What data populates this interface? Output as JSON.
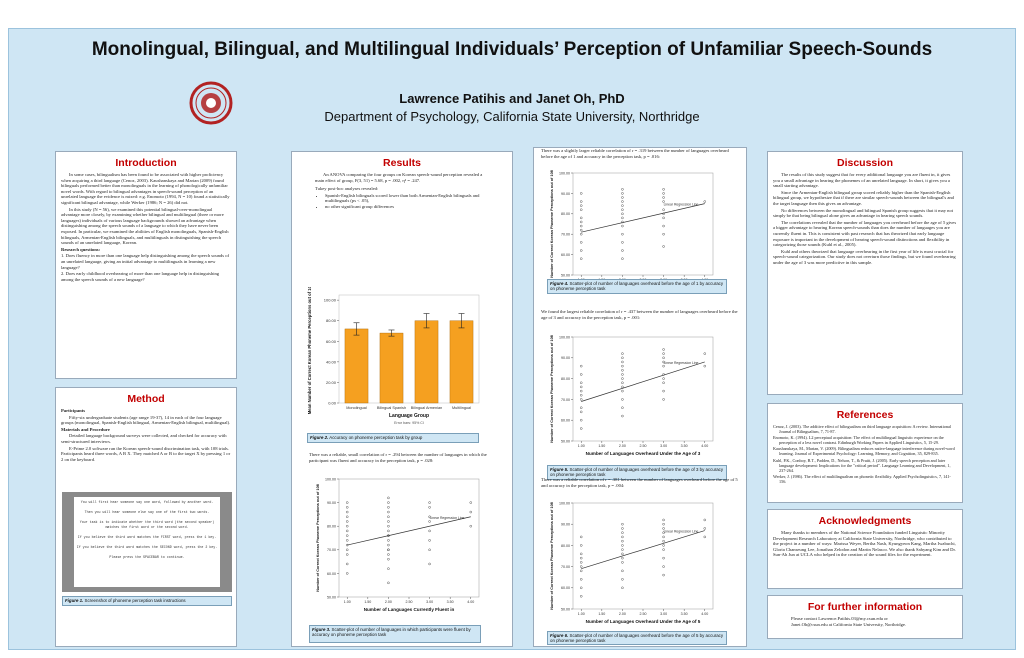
{
  "header": {
    "title": "Monolingual, Bilingual, and Multilingual Individuals’ Perception of Unfamiliar Speech-Sounds",
    "authors": "Lawrence Patihis and Janet Oh, PhD",
    "affiliation": "Department of Psychology, California State University, Northridge",
    "seal_color": "#b22222"
  },
  "intro": {
    "heading": "Introduction",
    "p1": "In some cases, bilingualism has been found to be associated with higher proficiency when acquiring a third language (Cenoz, 2003). Kaushanskaya and Marian (2009) found bilinguals performed better than monolinguals in the learning of phonologically unfamiliar novel words. With regard to bilingual advantages in speech-sound perception of an unrelated language the evidence is mixed: e.g. Enomoto (1994, N = 10) found a statistically significant bilingual advantage, while Werker (1986; N = 26) did not.",
    "p2": "In this study (N = 56), we examined this potential bilingual-over-monolingual advantage more closely, by examining whether bilingual and multilingual (three or more languages) individuals of various language backgrounds showed an advantage when distinguishing among the speech sounds of a language to which they have never been exposed. In particular, we examined the abilities of English monolinguals, Spanish-English bilinguals, Armenian-English bilinguals, and multilinguals in distinguishing the speech sounds of an unrelated language, Korean.",
    "rq": "Research questions:",
    "q1": "1. Does fluency in more than one language help distinguishing among the speech sounds of an unrelated language, giving an initial advantage to multilinguals in learning a new language?",
    "q2": "2. Does early childhood overhearing of more than one language help in distinguishing among the speech sounds of a new language?"
  },
  "method": {
    "heading": "Method",
    "participants": "Participants",
    "p1": "Fifty-six undergraduate students (age range 19-37), 14 in each of the four language groups (monolingual, Spanish-English bilingual, Armenian-English bilingual, multilingual).",
    "materials": "Materials and Procedure",
    "p2": "Detailed language background surveys were collected, and checked for accuracy with semi-structured interviews.",
    "p3": "E-Prime 2.0 software ran the Korean speech-sound discrimination task, with 108 trials. Participants heard three words, A B X. They matched A or B to the target X by pressing 1 or 2 on the keyboard.",
    "screen_lines": [
      "You will first hear someone say one word, followed by another word.",
      "Then you will hear someone else say one of the first two words.",
      "Your task is to indicate whether the third word (the second speaker) matches the first word or the second word.",
      "If you believe the third word matches the FIRST word, press the 1 key.",
      "If you believe the third word matches the SECOND word, press the 2 key.",
      "Please press the SPACEBAR to continue."
    ],
    "fig1_label": "Figure 1.",
    "fig1_text": " Screenshot of phoneme perception task instructions"
  },
  "results": {
    "heading": "Results",
    "p1": "An ANOVA comparing the four groups on Korean speech-sound perception revealed a main effect of group, F(3, 51) = 5.68, p = .002, η² = .247.",
    "p2": "Tukey post-hoc analyses revealed:",
    "b1": "Spanish-English bilinguals scored lower than both Armenian-English bilinguals and multilinguals (ps < .05),",
    "b2": "no other significant group differences",
    "fig2_label": "Figure 2.",
    "fig2_text": " Accuracy on phoneme perception task by group",
    "fig3_intro": "There was a reliable, small correlation of r = .294 between the number of languages in which the participant was fluent and accuracy in the perception task, p = .028:",
    "fig3_label": "Figure 3.",
    "fig3_text": " Scatter-plot of number of languages in which participants were fluent by accuracy on phoneme perception task"
  },
  "center": {
    "fig4_intro": "There was a slightly larger reliable correlation of r = .319 between the number of languages overheard before the age of 1 and accuracy in the perception task, p = .016:",
    "fig4_label": "Figure 4.",
    "fig4_text": " Scatter-plot of number of languages overheard before the age of 1 by accuracy on phoneme perception task",
    "fig5_intro": "We found the largest reliable correlation of r = .437 between the number of languages overheard before the age of 3 and accuracy in the perception task, p = .001:",
    "fig5_label": "Figure 5.",
    "fig5_text": " Scatter-plot of number of languages overheard before the age of 3 by accuracy on phoneme perception task",
    "fig6_intro": "There was a reliable correlation of r = .381 between the number of languages overheard before the age of 5 and accuracy in the perception task, p = .004:",
    "fig6_label": "Figure 6.",
    "fig6_text": " Scatter-plot of number of languages overheard before the age of 5 by accuracy on phoneme perception task"
  },
  "discussion": {
    "heading": "Discussion",
    "p1": "The results of this study suggest that for every additional language you are fluent in, it gives you a small advantage in hearing the phonemes of an unrelated language. In short, it gives you a small starting advantage.",
    "p2": "Since the Armenian-English bilingual group scored reliably higher than the Spanish-English bilingual group, we hypothesize that if there are similar speech-sounds between the bilingual's and the target language then this gives an advantage.",
    "p3": "No differences between the monolingual and bilingual Spanish group suggests that it may not simply be that being bilingual alone gives an advantage in hearing speech sounds.",
    "p4": "The correlations revealed that the number of languages you overheard before the age of 5 gives a bigger advantage to hearing Korean speech-sounds than does the number of languages you are currently fluent in. This is consistent with past research that has theorized that early language exposure is important in the development of hearing speech-sound distinctions and flexibility in categorizing those sounds (Kuhl et al., 2005).",
    "p5": "Kuhl and others theorized that language overhearing in the first year of life is most crucial for speech-sound categorization. Our study does not overturn those findings, but we found overhearing under the age of 3 was more predictive in this sample."
  },
  "references": {
    "heading": "References",
    "items": [
      "Cenoz, J. (2003). The additive effect of bilingualism on third language acquisition: A review. International Journal of Bilingualism, 7, 71-87.",
      "Enomoto, K. (1994). L2 perceptual acquisition: The effect of multilingual linguistic experience on the perception of a less novel contrast. Edinburgh Working Papers in Applied Linguistics, 5, 15-29.",
      "Kaushanskaya, M., Marian, V. (2009). Bilingualism reduces native-language interference during novel-word learning. Journal of Experimental Psychology: Learning, Memory, and Cognition, 35, 829-835.",
      "Kuhl, P.K., Conboy, B.T., Padden, D., Nelson, T., & Pruitt, J. (2005). Early speech perception and later language development: Implications for the \"critical period\". Language Learning and Development, 1, 237-264.",
      "Werker, J. (1986). The effect of multilingualism on phonetic flexibility. Applied Psycholinguistics, 7, 141-156."
    ]
  },
  "ack": {
    "heading": "Acknowledgments",
    "text": "Many thanks to members of the National Science Foundation funded Linguistic Minority Development Research Laboratory at California State University, Northridge, who contributed to the project in a number of ways: Marissa Weyer, Bertha Nash, Kyungyeon Kang, Martha Iwabuchi, Gloria Chanseung Lee, Jonathan Zelodon and Martin Nelasco. We also thank Sahyang Kim and Dr. Sun-Ah Jun at UCLA who helped in the creation of the sound files for the experiment."
  },
  "further": {
    "heading": "For further information",
    "l1": "Please contact Lawrence.Patihis.03@my.csun.edu or",
    "l2": "Janet.Oh@csun.edu at California State University, Northridge."
  },
  "chart_data": [
    {
      "type": "bar",
      "categories": [
        "Monolingual",
        "Bilingual Spanish",
        "Bilingual Armenian",
        "Multilingual"
      ],
      "values": [
        72,
        68,
        80,
        80
      ],
      "errors": [
        6,
        3,
        7,
        7
      ],
      "xlabel": "Language Group",
      "ylabel": "Mean Number of Correct Korean Phoneme Perceptions out of 108",
      "yticks": [
        "100.00",
        "80.00",
        "60.00",
        "40.00",
        "20.00",
        "0.00"
      ],
      "ylim": [
        0,
        105
      ],
      "footnote": "Error bars: 95% CI",
      "color": "#f5a020"
    },
    {
      "type": "scatter",
      "xlabel": "Number of Languages Currently Fluent in",
      "ylabel": "Number of Correct Korean Phoneme Perceptions out of 108",
      "xticks": [
        "1.00",
        "1.50",
        "2.00",
        "2.50",
        "3.00",
        "3.50",
        "4.00"
      ],
      "yticks": [
        "100.00",
        "90.00",
        "80.00",
        "70.00",
        "60.00",
        "50.00"
      ],
      "fit_label": "Linear Regression Line",
      "x": [
        1,
        1,
        1,
        1,
        1,
        1,
        1,
        1,
        1,
        1,
        1,
        1,
        1,
        1,
        2,
        2,
        2,
        2,
        2,
        2,
        2,
        2,
        2,
        2,
        2,
        2,
        2,
        2,
        2,
        2,
        2,
        2,
        3,
        3,
        3,
        3,
        3,
        3,
        3,
        3,
        4,
        4,
        4
      ],
      "y": [
        60,
        64,
        68,
        70,
        72,
        74,
        76,
        78,
        80,
        82,
        84,
        86,
        88,
        90,
        56,
        62,
        66,
        68,
        70,
        72,
        74,
        76,
        78,
        80,
        82,
        84,
        86,
        88,
        90,
        92,
        70,
        76,
        64,
        70,
        74,
        78,
        82,
        84,
        88,
        90,
        80,
        86,
        90
      ],
      "fit": [
        [
          1,
          72
        ],
        [
          4,
          84
        ]
      ],
      "xlim": [
        0.8,
        4.2
      ],
      "ylim": [
        50,
        100
      ]
    },
    {
      "type": "scatter",
      "xlabel": "Number of Languages Overheard Under the Age of 1",
      "ylabel": "Number of Correct Korean Phoneme Perceptions out of 108",
      "xticks": [
        "1.00",
        "1.50",
        "2.00",
        "2.50",
        "3.00",
        "3.50",
        "4.00"
      ],
      "yticks": [
        "100.00",
        "90.00",
        "80.00",
        "70.00",
        "60.00",
        "50.00"
      ],
      "fit_label": "Linear Regression Line",
      "x": [
        1,
        1,
        1,
        1,
        1,
        1,
        1,
        1,
        1,
        1,
        1,
        1,
        2,
        2,
        2,
        2,
        2,
        2,
        2,
        2,
        2,
        2,
        2,
        2,
        2,
        2,
        3,
        3,
        3,
        3,
        3,
        3,
        3,
        3,
        3,
        3,
        4
      ],
      "y": [
        58,
        62,
        66,
        70,
        72,
        74,
        76,
        78,
        82,
        84,
        86,
        90,
        58,
        62,
        66,
        70,
        74,
        76,
        78,
        80,
        82,
        84,
        86,
        88,
        90,
        92,
        64,
        70,
        74,
        78,
        80,
        82,
        86,
        88,
        90,
        92,
        86
      ],
      "fit": [
        [
          1,
          71
        ],
        [
          4,
          85
        ]
      ],
      "xlim": [
        0.8,
        4.2
      ],
      "ylim": [
        50,
        100
      ]
    },
    {
      "type": "scatter",
      "xlabel": "Number of Languages Overheard Under the Age of 3",
      "ylabel": "Number of Correct Korean Phoneme Perceptions out of 108",
      "xticks": [
        "1.00",
        "1.50",
        "2.00",
        "2.50",
        "3.00",
        "3.50",
        "4.00"
      ],
      "yticks": [
        "100.00",
        "90.00",
        "80.00",
        "70.00",
        "60.00",
        "50.00"
      ],
      "fit_label": "Linear Regression Line",
      "x": [
        1,
        1,
        1,
        1,
        1,
        1,
        1,
        1,
        1,
        1,
        1,
        2,
        2,
        2,
        2,
        2,
        2,
        2,
        2,
        2,
        2,
        2,
        2,
        2,
        3,
        3,
        3,
        3,
        3,
        3,
        3,
        3,
        3,
        3,
        4,
        4
      ],
      "y": [
        56,
        60,
        64,
        66,
        70,
        72,
        74,
        76,
        78,
        82,
        86,
        62,
        66,
        70,
        74,
        76,
        78,
        80,
        82,
        84,
        86,
        88,
        90,
        92,
        70,
        74,
        78,
        80,
        82,
        86,
        88,
        90,
        92,
        94,
        86,
        92
      ],
      "fit": [
        [
          1,
          69
        ],
        [
          4,
          88
        ]
      ],
      "xlim": [
        0.8,
        4.2
      ],
      "ylim": [
        50,
        100
      ]
    },
    {
      "type": "scatter",
      "xlabel": "Number of Languages Overheard Under the Age of 5",
      "ylabel": "Number of Correct Korean Phoneme Perceptions out of 108",
      "xticks": [
        "1.00",
        "1.50",
        "2.00",
        "2.50",
        "3.00",
        "3.50",
        "4.00"
      ],
      "yticks": [
        "100.00",
        "90.00",
        "80.00",
        "70.00",
        "60.00",
        "50.00"
      ],
      "fit_label": "Linear Regression Line",
      "x": [
        1,
        1,
        1,
        1,
        1,
        1,
        1,
        1,
        1,
        1,
        2,
        2,
        2,
        2,
        2,
        2,
        2,
        2,
        2,
        2,
        2,
        2,
        2,
        3,
        3,
        3,
        3,
        3,
        3,
        3,
        3,
        3,
        3,
        3,
        4,
        4,
        4
      ],
      "y": [
        56,
        60,
        64,
        68,
        70,
        72,
        74,
        76,
        80,
        84,
        60,
        64,
        68,
        72,
        74,
        76,
        78,
        80,
        82,
        84,
        86,
        88,
        90,
        66,
        70,
        74,
        78,
        80,
        82,
        84,
        86,
        88,
        90,
        92,
        84,
        88,
        92
      ],
      "fit": [
        [
          1,
          69
        ],
        [
          4,
          87
        ]
      ],
      "xlim": [
        0.8,
        4.2
      ],
      "ylim": [
        50,
        100
      ]
    }
  ]
}
